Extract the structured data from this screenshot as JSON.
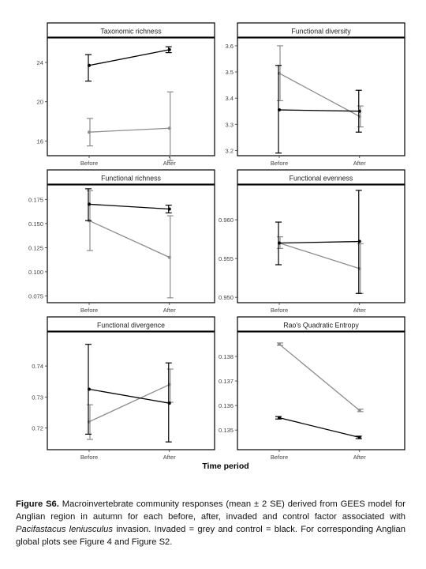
{
  "figure": {
    "xlabel": "Time period",
    "caption": {
      "label": "Figure S6.",
      "text_1": " Macroinvertebrate community responses (mean ± 2 SE) derived from GEES model for Anglian region in autumn for each before, after, invaded and control factor associated with ",
      "species": "Pacifastacus leniusculus",
      "text_2": " invasion. Invaded = grey and control = black. For corresponding Anglian global plots see Figure 4 and Figure S2."
    },
    "colors": {
      "invaded": "#8c8c8c",
      "control": "#000000"
    }
  },
  "chart_data": [
    {
      "type": "line",
      "title": "Taxonomic richness",
      "categories": [
        "Before",
        "After"
      ],
      "ylim": [
        14.5,
        26.5
      ],
      "yticks": [
        16,
        20,
        24
      ],
      "ytick_labels": [
        "16",
        "20",
        "24"
      ],
      "series": [
        {
          "role": "control",
          "values": [
            23.7,
            25.3
          ],
          "lower": [
            22.1,
            25.0
          ],
          "upper": [
            24.8,
            25.6
          ]
        },
        {
          "role": "invaded",
          "values": [
            16.9,
            17.3
          ],
          "lower": [
            15.5,
            14.0
          ],
          "upper": [
            18.3,
            21.0
          ]
        }
      ]
    },
    {
      "type": "line",
      "title": "Functional diversity",
      "categories": [
        "Before",
        "After"
      ],
      "ylim": [
        3.18,
        3.63
      ],
      "yticks": [
        3.2,
        3.3,
        3.4,
        3.5,
        3.6
      ],
      "ytick_labels": [
        "3.2",
        "3.3",
        "3.4",
        "3.5",
        "3.6"
      ],
      "series": [
        {
          "role": "control",
          "values": [
            3.355,
            3.35
          ],
          "lower": [
            3.19,
            3.27
          ],
          "upper": [
            3.525,
            3.43
          ]
        },
        {
          "role": "invaded",
          "values": [
            3.495,
            3.33
          ],
          "lower": [
            3.39,
            3.29
          ],
          "upper": [
            3.6,
            3.37
          ]
        }
      ]
    },
    {
      "type": "line",
      "title": "Functional richness",
      "categories": [
        "Before",
        "After"
      ],
      "ylim": [
        0.068,
        0.19
      ],
      "yticks": [
        0.075,
        0.1,
        0.125,
        0.15,
        0.175
      ],
      "ytick_labels": [
        "0.075",
        "0.100",
        "0.125",
        "0.150",
        "0.175"
      ],
      "series": [
        {
          "role": "control",
          "values": [
            0.17,
            0.165
          ],
          "lower": [
            0.153,
            0.161
          ],
          "upper": [
            0.186,
            0.169
          ]
        },
        {
          "role": "invaded",
          "values": [
            0.153,
            0.115
          ],
          "lower": [
            0.122,
            0.073
          ],
          "upper": [
            0.184,
            0.158
          ]
        }
      ]
    },
    {
      "type": "line",
      "title": "Functional evenness",
      "categories": [
        "Before",
        "After"
      ],
      "ylim": [
        0.9493,
        0.9645
      ],
      "yticks": [
        0.95,
        0.955,
        0.96
      ],
      "ytick_labels": [
        "0.950",
        "0.955",
        "0.960"
      ],
      "series": [
        {
          "role": "control",
          "values": [
            0.957,
            0.9572
          ],
          "lower": [
            0.9542,
            0.9505
          ],
          "upper": [
            0.9597,
            0.9638
          ]
        },
        {
          "role": "invaded",
          "values": [
            0.957,
            0.9537
          ],
          "lower": [
            0.9563,
            0.9505
          ],
          "upper": [
            0.9578,
            0.9569
          ]
        }
      ]
    },
    {
      "type": "line",
      "title": "Functional divergence",
      "categories": [
        "Before",
        "After"
      ],
      "ylim": [
        0.713,
        0.751
      ],
      "yticks": [
        0.72,
        0.73,
        0.74
      ],
      "ytick_labels": [
        "0.72",
        "0.73",
        "0.74"
      ],
      "series": [
        {
          "role": "control",
          "values": [
            0.7325,
            0.728
          ],
          "lower": [
            0.718,
            0.7155
          ],
          "upper": [
            0.747,
            0.741
          ]
        },
        {
          "role": "invaded",
          "values": [
            0.722,
            0.734
          ],
          "lower": [
            0.7163,
            0.7283
          ],
          "upper": [
            0.7275,
            0.739
          ]
        }
      ]
    },
    {
      "type": "line",
      "title": "Rao's Quadratic Entropy",
      "categories": [
        "Before",
        "After"
      ],
      "ylim": [
        0.1342,
        0.139
      ],
      "yticks": [
        0.135,
        0.136,
        0.137,
        0.138
      ],
      "ytick_labels": [
        "0.135",
        "0.136",
        "0.137",
        "0.138"
      ],
      "series": [
        {
          "role": "control",
          "values": [
            0.1355,
            0.1347
          ],
          "lower": [
            0.13545,
            0.13465
          ],
          "upper": [
            0.13555,
            0.13475
          ]
        },
        {
          "role": "invaded",
          "values": [
            0.1385,
            0.1358
          ],
          "lower": [
            0.13845,
            0.13575
          ],
          "upper": [
            0.13855,
            0.13585
          ]
        }
      ]
    }
  ]
}
